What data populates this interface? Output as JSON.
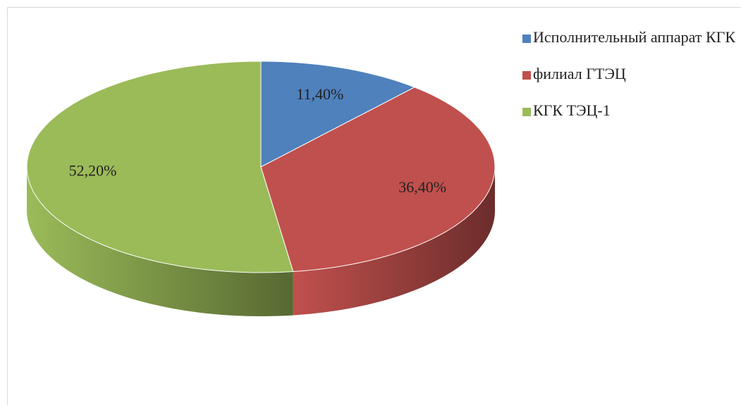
{
  "chart_data": {
    "type": "pie",
    "categories": [
      "Исполнительный аппарат КГК",
      "филиал ГТЭЦ",
      "КГК ТЭЦ-1"
    ],
    "values": [
      11.4,
      36.4,
      52.2
    ],
    "value_labels": [
      "11,40%",
      "36,40%",
      "52,20%"
    ],
    "colors": [
      "#4f81bd",
      "#c0504d",
      "#9bbb59"
    ],
    "legend": "right"
  }
}
